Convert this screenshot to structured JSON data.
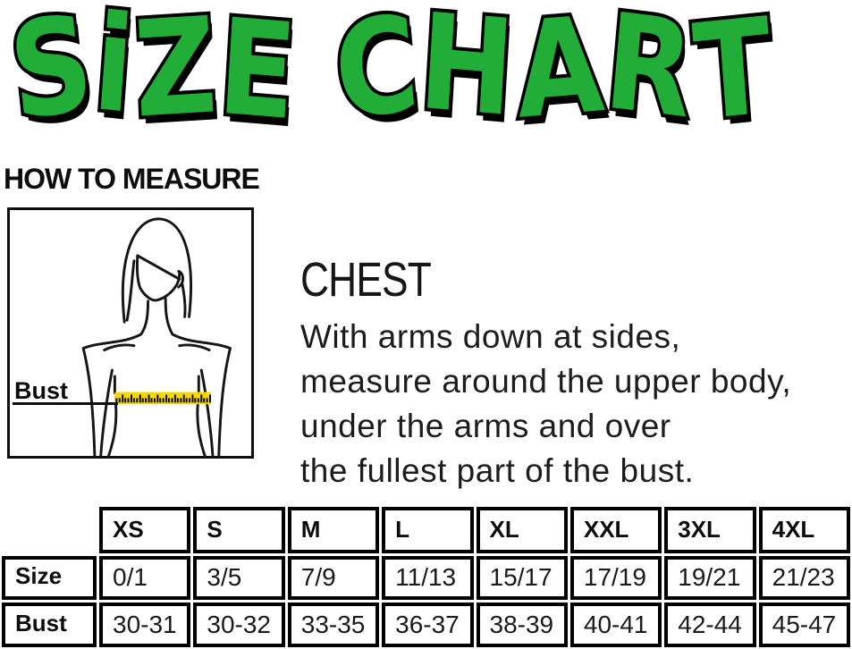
{
  "colors": {
    "title_green": "#22AC38",
    "title_outline": "#000000",
    "tape_yellow": "#F4D800",
    "line_black": "#141414"
  },
  "title": {
    "text": "SiZE CHART"
  },
  "measure_section": {
    "heading": "HOW TO MEASURE",
    "bust_label": "Bust"
  },
  "chest_section": {
    "heading": "CHEST",
    "lines": [
      "With arms down at sides,",
      "measure around the upper body,",
      "under the arms and over",
      "the fullest part of the bust."
    ]
  },
  "size_table": {
    "columns": [
      "XS",
      "S",
      "M",
      "L",
      "XL",
      "XXL",
      "3XL",
      "4XL"
    ],
    "rows": [
      {
        "label": "Size",
        "values": [
          "0/1",
          "3/5",
          "7/9",
          "11/13",
          "15/17",
          "17/19",
          "19/21",
          "21/23"
        ]
      },
      {
        "label": "Bust",
        "values": [
          "30-31",
          "30-32",
          "33-35",
          "36-37",
          "38-39",
          "40-41",
          "42-44",
          "45-47"
        ]
      }
    ]
  }
}
